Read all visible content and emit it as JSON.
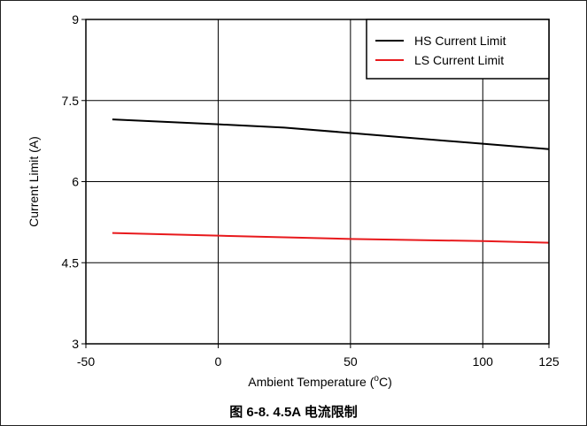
{
  "figure": {
    "caption": "图 6-8. 4.5A 电流限制"
  },
  "chart_data": {
    "type": "line",
    "title": "",
    "xlabel": "Ambient Temperature",
    "xlabel_unit": "(°C)",
    "ylabel": "Current Limit (A)",
    "xlim": [
      -50,
      125
    ],
    "ylim": [
      3,
      9
    ],
    "x_ticks": [
      -50,
      0,
      50,
      100,
      125
    ],
    "x_tick_labels": [
      "-50",
      "0",
      "50",
      "100",
      "125"
    ],
    "x_grid": [
      0,
      50,
      100
    ],
    "y_ticks": [
      3,
      4.5,
      6,
      7.5,
      9
    ],
    "y_tick_labels": [
      "3",
      "4.5",
      "6",
      "7.5",
      "9"
    ],
    "grid": true,
    "legend_position": "top-right",
    "series": [
      {
        "name": "HS Current Limit",
        "color": "#000000",
        "x": [
          -40,
          0,
          25,
          50,
          100,
          125
        ],
        "y": [
          7.15,
          7.06,
          7.0,
          6.9,
          6.7,
          6.6
        ]
      },
      {
        "name": "LS Current Limit",
        "color": "#e8191c",
        "x": [
          -40,
          0,
          25,
          50,
          100,
          125
        ],
        "y": [
          5.05,
          5.0,
          4.97,
          4.94,
          4.9,
          4.87
        ]
      }
    ]
  }
}
